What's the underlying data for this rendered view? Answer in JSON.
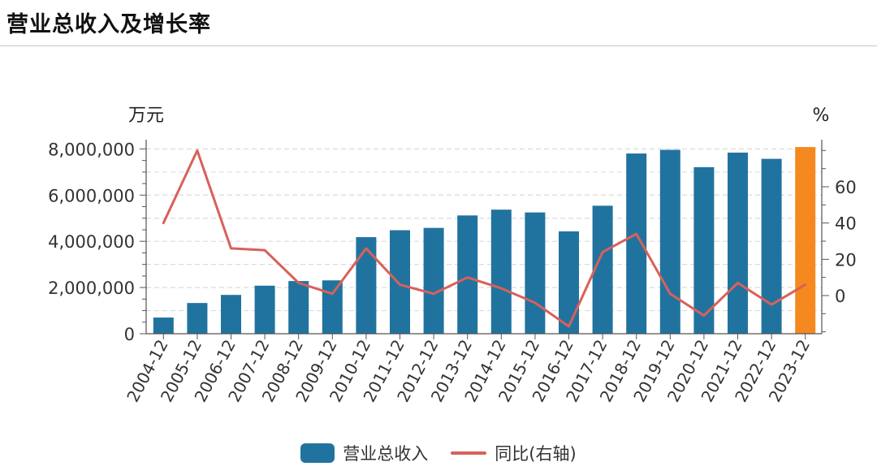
{
  "page": {
    "title": "营业总收入及增长率"
  },
  "chart_data": {
    "type": "bar",
    "title": "营业总收入及增长率",
    "categories": [
      "2004-12",
      "2005-12",
      "2006-12",
      "2007-12",
      "2008-12",
      "2009-12",
      "2010-12",
      "2011-12",
      "2012-12",
      "2013-12",
      "2014-12",
      "2015-12",
      "2016-12",
      "2017-12",
      "2018-12",
      "2019-12",
      "2020-12",
      "2021-12",
      "2022-12",
      "2023-12"
    ],
    "series": [
      {
        "name": "营业总收入",
        "type": "bar",
        "axis": "left",
        "values": [
          700000,
          1330000,
          1680000,
          2080000,
          2280000,
          2310000,
          4180000,
          4480000,
          4580000,
          5120000,
          5370000,
          5250000,
          4430000,
          5540000,
          7800000,
          7960000,
          7210000,
          7840000,
          7570000,
          8080000
        ],
        "color": "#21739f",
        "highlight_last_color": "#f5891f"
      },
      {
        "name": "同比(右轴)",
        "type": "line",
        "axis": "right",
        "values": [
          40,
          80,
          26,
          25,
          7,
          1,
          26,
          6,
          1,
          10,
          4,
          -4,
          -17,
          24,
          34,
          1,
          -11,
          7,
          -5,
          6
        ],
        "color": "#d9605a"
      }
    ],
    "left_axis": {
      "unit": "万元",
      "ylim": [
        0,
        8400000
      ],
      "ticks": [
        0,
        2000000,
        4000000,
        6000000,
        8000000
      ],
      "tick_labels": [
        "0",
        "2,000,000",
        "4,000,000",
        "6,000,000",
        "8,000,000"
      ]
    },
    "right_axis": {
      "unit": "%",
      "ticks": [
        0,
        20,
        40,
        60
      ],
      "tick_labels": [
        "0",
        "20",
        "40",
        "60"
      ]
    },
    "grid": true,
    "legend_position": "bottom-center"
  }
}
